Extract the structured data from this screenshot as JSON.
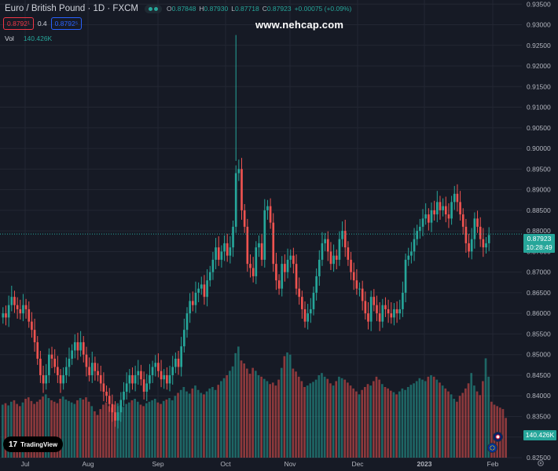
{
  "header": {
    "symbol": "Euro / British Pound · 1D · FXCM",
    "ohlc": [
      {
        "label": "O",
        "value": "0.87848"
      },
      {
        "label": "H",
        "value": "0.87930"
      },
      {
        "label": "L",
        "value": "0.87718"
      },
      {
        "label": "C",
        "value": "0.87923"
      },
      {
        "label": "",
        "value": "+0.00075 (+0.09%)"
      }
    ],
    "sell_price": "0.8792¹",
    "spread": "0.4",
    "buy_price": "0.8792⁵"
  },
  "volume": {
    "label": "Vol",
    "value": "140.426K",
    "tag": "140.426K"
  },
  "watermark": "www.nehcap.com",
  "price_tag": {
    "price": "0.87923",
    "countdown": "10:28:49"
  },
  "brand": {
    "name": "TradingView",
    "mark": "17"
  },
  "colors": {
    "up": "#26a69a",
    "down": "#ef5350",
    "background": "#161a25",
    "grid": "#232733",
    "text": "#b2b5be"
  },
  "icons": [
    "live-status-icon",
    "uk-flag-icon",
    "eu-flag-icon",
    "settings-gear-icon"
  ],
  "chart_data": {
    "type": "candlestick",
    "y_ticks": [
      "0.93500",
      "0.93000",
      "0.92500",
      "0.92000",
      "0.91500",
      "0.91000",
      "0.90500",
      "0.90000",
      "0.89500",
      "0.89000",
      "0.88500",
      "0.88000",
      "0.87500",
      "0.87000",
      "0.86500",
      "0.86000",
      "0.85500",
      "0.85000",
      "0.84500",
      "0.84000",
      "0.83500",
      "0.83000",
      "0.82500"
    ],
    "x_ticks": [
      "Jul",
      "Aug",
      "Sep",
      "Oct",
      "Nov",
      "Dec",
      "2023",
      "Feb"
    ],
    "ylim": [
      0.825,
      0.936
    ],
    "last_price": 0.87923,
    "path": [
      0.86,
      0.859,
      0.862,
      0.864,
      0.862,
      0.861,
      0.86,
      0.862,
      0.861,
      0.858,
      0.856,
      0.853,
      0.849,
      0.845,
      0.843,
      0.845,
      0.85,
      0.849,
      0.847,
      0.845,
      0.843,
      0.845,
      0.847,
      0.849,
      0.851,
      0.853,
      0.851,
      0.853,
      0.85,
      0.847,
      0.845,
      0.848,
      0.846,
      0.845,
      0.843,
      0.841,
      0.84,
      0.838,
      0.836,
      0.834,
      0.836,
      0.839,
      0.841,
      0.843,
      0.845,
      0.843,
      0.845,
      0.846,
      0.844,
      0.841,
      0.843,
      0.845,
      0.847,
      0.848,
      0.846,
      0.844,
      0.845,
      0.843,
      0.845,
      0.847,
      0.849,
      0.847,
      0.852,
      0.856,
      0.86,
      0.863,
      0.862,
      0.865,
      0.866,
      0.867,
      0.864,
      0.868,
      0.87,
      0.873,
      0.876,
      0.873,
      0.875,
      0.877,
      0.874,
      0.876,
      0.881,
      0.894,
      0.895,
      0.885,
      0.881,
      0.872,
      0.871,
      0.869,
      0.876,
      0.877,
      0.873,
      0.885,
      0.886,
      0.882,
      0.872,
      0.868,
      0.866,
      0.872,
      0.87,
      0.873,
      0.874,
      0.872,
      0.866,
      0.864,
      0.861,
      0.858,
      0.86,
      0.861,
      0.865,
      0.869,
      0.873,
      0.877,
      0.878,
      0.875,
      0.872,
      0.874,
      0.873,
      0.878,
      0.88,
      0.876,
      0.873,
      0.87,
      0.868,
      0.866,
      0.866,
      0.863,
      0.86,
      0.858,
      0.864,
      0.862,
      0.86,
      0.858,
      0.862,
      0.861,
      0.86,
      0.859,
      0.861,
      0.86,
      0.861,
      0.865,
      0.873,
      0.874,
      0.875,
      0.878,
      0.88,
      0.881,
      0.883,
      0.884,
      0.882,
      0.885,
      0.884,
      0.887,
      0.885,
      0.886,
      0.884,
      0.883,
      0.887,
      0.889,
      0.887,
      0.884,
      0.881,
      0.877,
      0.875,
      0.878,
      0.883,
      0.881,
      0.878,
      0.876,
      0.877,
      0.879
    ],
    "volumes": [
      72,
      74,
      71,
      76,
      78,
      73,
      70,
      75,
      80,
      82,
      77,
      73,
      76,
      79,
      83,
      86,
      81,
      78,
      76,
      74,
      80,
      83,
      79,
      77,
      75,
      73,
      78,
      81,
      79,
      82,
      76,
      70,
      63,
      58,
      66,
      72,
      75,
      70,
      68,
      72,
      74,
      71,
      69,
      73,
      75,
      78,
      80,
      76,
      72,
      70,
      74,
      76,
      78,
      80,
      75,
      73,
      77,
      79,
      81,
      78,
      84,
      88,
      92,
      96,
      90,
      87,
      94,
      98,
      92,
      88,
      86,
      90,
      94,
      96,
      92,
      99,
      104,
      108,
      112,
      118,
      124,
      142,
      151,
      132,
      128,
      121,
      114,
      122,
      118,
      112,
      110,
      107,
      104,
      100,
      102,
      98,
      106,
      122,
      138,
      143,
      140,
      121,
      117,
      110,
      104,
      96,
      98,
      101,
      103,
      106,
      112,
      115,
      110,
      107,
      101,
      98,
      104,
      110,
      108,
      106,
      102,
      98,
      94,
      90,
      86,
      92,
      96,
      100,
      98,
      104,
      110,
      106,
      100,
      96,
      94,
      91,
      89,
      86,
      90,
      94,
      92,
      96,
      99,
      101,
      104,
      108,
      106,
      104,
      110,
      112,
      110,
      106,
      102,
      98,
      94,
      90,
      86,
      80,
      76,
      84,
      88,
      94,
      101,
      115,
      98,
      90,
      85,
      104,
      135,
      110,
      76,
      72,
      70,
      68,
      66,
      54
    ],
    "first_month_index": [
      0,
      0
    ]
  }
}
